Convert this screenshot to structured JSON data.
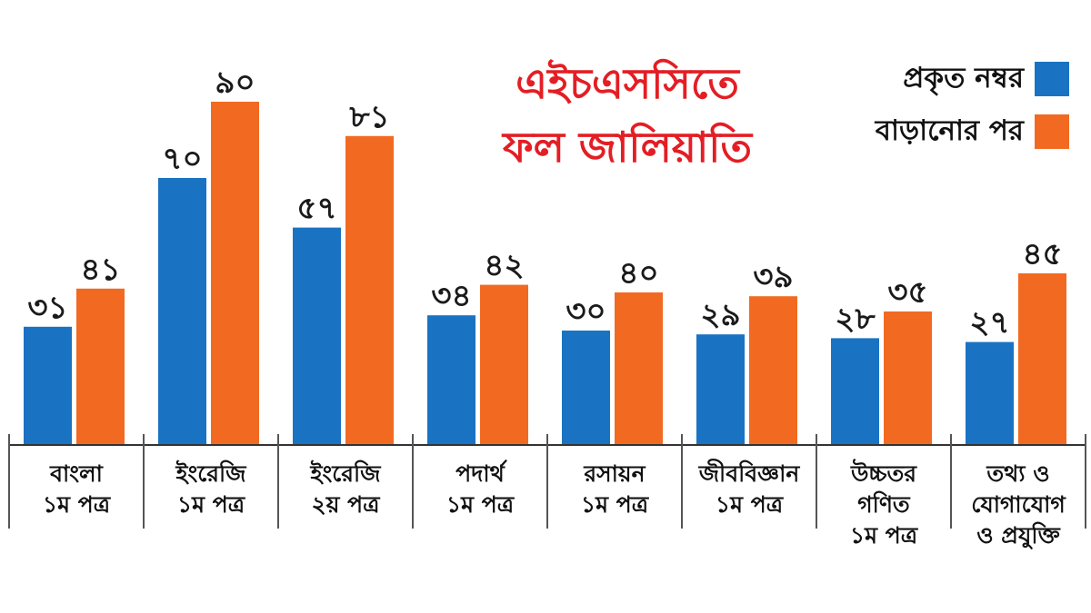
{
  "chart_data": {
    "type": "bar",
    "title_lines": [
      "এইচএসসিতে",
      "ফল জালিয়াতি"
    ],
    "categories": [
      [
        "বাংলা",
        "১ম পত্র"
      ],
      [
        "ইংরেজি",
        "১ম পত্র"
      ],
      [
        "ইংরেজি",
        "২য় পত্র"
      ],
      [
        "পদার্থ",
        "১ম পত্র"
      ],
      [
        "রসায়ন",
        "১ম পত্র"
      ],
      [
        "জীববিজ্ঞান",
        "১ম পত্র"
      ],
      [
        "উচ্চতর",
        "গণিত",
        "১ম পত্র"
      ],
      [
        "তথ্য ও",
        "যোগাযোগ",
        "ও প্রযুক্তি"
      ]
    ],
    "series": [
      {
        "name": "প্রকৃত নম্বর",
        "color": "#1a73c2",
        "values": [
          31,
          70,
          57,
          34,
          30,
          29,
          28,
          27
        ],
        "labels": [
          "৩১",
          "৭০",
          "৫৭",
          "৩৪",
          "৩০",
          "২৯",
          "২৮",
          "২৭"
        ]
      },
      {
        "name": "বাড়ানোর পর",
        "color": "#f26a21",
        "values": [
          41,
          90,
          81,
          42,
          40,
          39,
          35,
          45
        ],
        "labels": [
          "৪১",
          "৯০",
          "৮১",
          "৪২",
          "৪০",
          "৩৯",
          "৩৫",
          "৪৫"
        ]
      }
    ],
    "ylim": [
      0,
      90
    ],
    "legend_position": "top-right",
    "grid": false
  }
}
